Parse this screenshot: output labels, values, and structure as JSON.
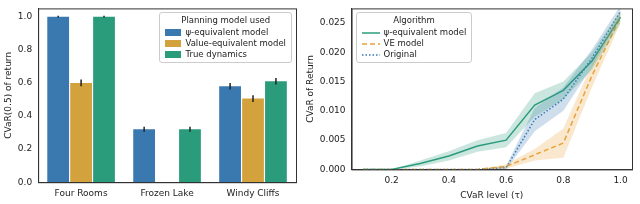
{
  "chart_data": [
    {
      "type": "bar",
      "y_label": "CVaR(0.5) of return",
      "categories": [
        "Four Rooms",
        "Frozen Lake",
        "Windy Cliffs"
      ],
      "series": [
        {
          "name": "ψ-equivalent model",
          "color": "#3a78b0",
          "values": [
            1.0,
            0.32,
            0.58
          ],
          "error": [
            0.005,
            0.015,
            0.02
          ]
        },
        {
          "name": "Value-equivalent model",
          "color": "#d4a23c",
          "values": [
            0.6,
            null,
            0.505
          ],
          "error": [
            0.02,
            null,
            0.02
          ]
        },
        {
          "name": "True dynamics",
          "color": "#2b9c7b",
          "values": [
            1.0,
            0.32,
            0.61
          ],
          "error": [
            0.005,
            0.015,
            0.02
          ]
        }
      ],
      "ylim": [
        0,
        1.05
      ],
      "yticks": [
        {
          "value": 0,
          "label": "0.0"
        },
        0.2,
        0.4,
        0.6,
        0.8,
        {
          "value": 1,
          "label": "1.0"
        }
      ],
      "grid": false,
      "legend": "upper right",
      "legend_title": "Planning model used"
    },
    {
      "type": "line",
      "x_label": "CVaR level (τ)",
      "y_label": "CVaR of Return",
      "x": [
        0.1,
        0.2,
        0.3,
        0.4,
        0.5,
        0.6,
        0.7,
        0.8,
        0.9,
        1.0
      ],
      "series": [
        {
          "name": "ψ-equivalent model",
          "color": "#2a9d7c",
          "line_style": "solid",
          "values": [
            0,
            0,
            0.001,
            0.0023,
            0.004,
            0.005,
            0.011,
            0.0135,
            0.0185,
            0.026
          ],
          "error": [
            0,
            0,
            0.0005,
            0.0008,
            0.001,
            0.0012,
            0.002,
            0.0015,
            0.0015,
            0.001
          ]
        },
        {
          "name": "VE model",
          "color": "#e8a33a",
          "line_style": "dashed",
          "values": [
            0,
            0,
            0,
            0,
            0,
            0.0005,
            0.0025,
            0.0045,
            0.016,
            0.026
          ],
          "error": [
            0,
            0,
            0,
            0,
            0,
            0.0004,
            0.001,
            0.0025,
            0.002,
            0.001
          ]
        },
        {
          "name": "Original",
          "color": "#3a7ab8",
          "line_style": "dotted",
          "values": [
            0,
            0,
            0,
            0,
            0,
            0.0003,
            0.0085,
            0.012,
            0.019,
            0.027
          ],
          "error": [
            0,
            0,
            0,
            0,
            0,
            0.0003,
            0.002,
            0.002,
            0.0015,
            0.001
          ]
        }
      ],
      "xlim": [
        0.06,
        1.04
      ],
      "xticks": [
        0.2,
        0.4,
        0.6,
        0.8,
        {
          "value": 1,
          "label": "1.0"
        }
      ],
      "ylim": [
        0,
        0.0275
      ],
      "yticks": [
        {
          "value": 0,
          "label": "0.000"
        },
        {
          "value": 0.005,
          "label": "0.005"
        },
        {
          "value": 0.01,
          "label": "0.010"
        },
        {
          "value": 0.015,
          "label": "0.015"
        },
        {
          "value": 0.02,
          "label": "0.020"
        },
        {
          "value": 0.025,
          "label": "0.025"
        }
      ],
      "grid": false,
      "legend": "upper left",
      "legend_title": "Algorithm"
    }
  ]
}
